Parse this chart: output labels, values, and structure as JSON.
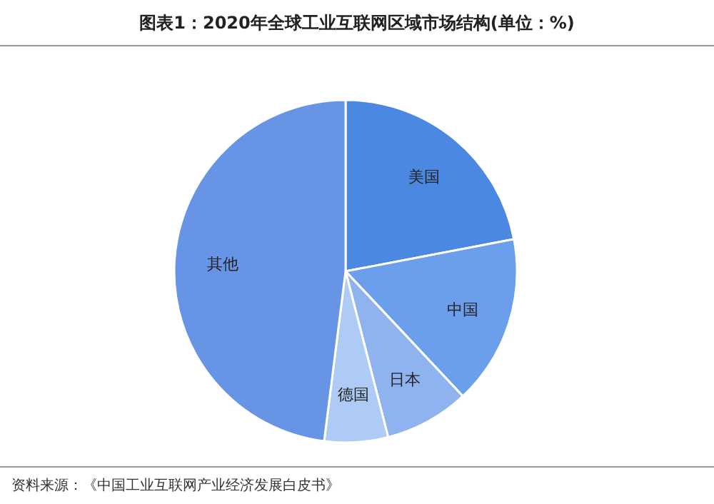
{
  "chart_data": {
    "type": "pie",
    "title": "图表1：2020年全球工业互联网区域市场结构(单位：%)",
    "categories": [
      "美国",
      "中国",
      "日本",
      "德国",
      "其他"
    ],
    "values": [
      22,
      16,
      8,
      6,
      48
    ],
    "colors": [
      "#4a88e2",
      "#6b9fec",
      "#8fb3ee",
      "#aecbf6",
      "#6894e6"
    ],
    "annotations": [
      "资料来源：《中国工业互联网产业经济发展白皮书》"
    ]
  }
}
